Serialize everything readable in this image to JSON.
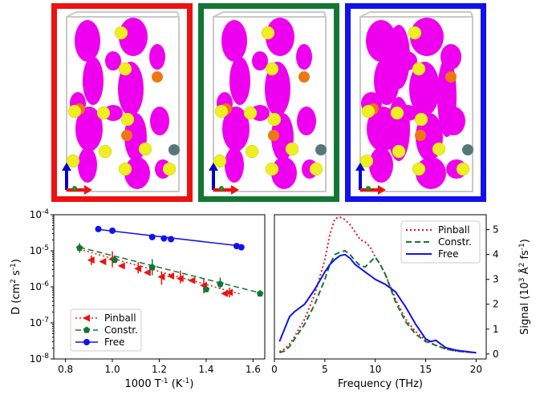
{
  "panels": [
    {
      "name": "Pinball",
      "color": "#ee1111"
    },
    {
      "name": "Constr.",
      "color": "#117733"
    },
    {
      "name": "Free",
      "color": "#1111ee"
    }
  ],
  "chart_data": [
    {
      "type": "scatter",
      "log_y": true,
      "xlim": [
        0.75,
        1.65
      ],
      "ylim": [
        1e-08,
        0.0001
      ],
      "xlabel": "1000 T^{-1} (K^{-1})",
      "ylabel": "D (cm^2 s^{-1})",
      "xticks": [
        "0.8",
        "1.0",
        "1.2",
        "1.4",
        "1.6"
      ],
      "yticks": [
        "10^{-8}",
        "10^{-7}",
        "10^{-6}",
        "10^{-5}",
        "10^{-4}"
      ],
      "legend_position": "lower-left",
      "series": [
        {
          "name": "Pinball",
          "color": "#ee1111",
          "line": "dotted",
          "marker": "triangle-left",
          "fit": [
            [
              0.86,
              1.1e-05
            ],
            [
              1.55,
              6.2e-07
            ]
          ],
          "x": [
            0.91,
            0.96,
            1.0,
            1.04,
            1.11,
            1.15,
            1.21,
            1.25,
            1.29,
            1.34,
            1.39,
            1.48,
            1.5
          ],
          "y": [
            5.5e-06,
            5e-06,
            5.8e-06,
            3.8e-06,
            3.2e-06,
            2.5e-06,
            1.9e-06,
            2e-06,
            1.7e-06,
            1.5e-06,
            1.1e-06,
            6.5e-07,
            7e-07
          ]
        },
        {
          "name": "Constr.",
          "color": "#117733",
          "line": "dashed",
          "marker": "pentagon",
          "fit": [
            [
              0.86,
              1.25e-05
            ],
            [
              1.63,
              6.8e-07
            ]
          ],
          "x": [
            0.86,
            1.01,
            1.17,
            1.4,
            1.46,
            1.63
          ],
          "y": [
            1.2e-05,
            5.5e-06,
            3.5e-06,
            8.5e-07,
            1.2e-06,
            6.5e-07
          ]
        },
        {
          "name": "Free",
          "color": "#1111ee",
          "line": "solid",
          "marker": "circle",
          "fit": [
            [
              0.94,
              3.9e-05
            ],
            [
              1.55,
              1.35e-05
            ]
          ],
          "x": [
            0.94,
            1.0,
            1.17,
            1.22,
            1.25,
            1.53,
            1.55
          ],
          "y": [
            4e-05,
            3.6e-05,
            2.4e-05,
            2.2e-05,
            2.1e-05,
            1.35e-05,
            1.25e-05
          ]
        }
      ]
    },
    {
      "type": "line",
      "xlim": [
        0,
        21
      ],
      "ylim": [
        -0.2,
        5.6
      ],
      "xlabel": "Frequency (THz)",
      "ylabel": "Signal (10^3 Å^2 fs^{-1})",
      "xticks": [
        "0",
        "5",
        "10",
        "15",
        "20"
      ],
      "yticks": [
        "0",
        "1",
        "2",
        "3",
        "4",
        "5"
      ],
      "legend_position": "upper-right",
      "series": [
        {
          "name": "Pinball",
          "color": "#ee1111",
          "line": "dotted",
          "x": [
            0.5,
            1,
            1.5,
            2,
            3,
            4,
            5,
            5.5,
            6,
            6.5,
            7,
            7.5,
            8,
            8.5,
            9,
            9.5,
            10,
            10.5,
            11,
            12,
            13,
            14,
            15,
            16,
            17,
            18,
            19,
            20
          ],
          "y": [
            0.1,
            0.2,
            0.4,
            0.7,
            1.4,
            2.4,
            3.8,
            4.8,
            5.45,
            5.5,
            5.4,
            5.2,
            4.9,
            4.6,
            4.5,
            4.3,
            3.9,
            3.6,
            3.2,
            2.2,
            1.4,
            0.9,
            0.55,
            0.35,
            0.2,
            0.12,
            0.08,
            0.05
          ]
        },
        {
          "name": "Constr.",
          "color": "#117733",
          "line": "dashed",
          "x": [
            0.5,
            1,
            1.5,
            2,
            3,
            4,
            5,
            5.5,
            6,
            6.5,
            7,
            7.5,
            8,
            8.5,
            9,
            9.5,
            10,
            10.5,
            11,
            12,
            13,
            14,
            15,
            16,
            17,
            18,
            19,
            20
          ],
          "y": [
            0.05,
            0.12,
            0.3,
            0.6,
            1.2,
            2.0,
            3.0,
            3.6,
            4.0,
            4.1,
            4.15,
            4.0,
            3.75,
            3.55,
            3.5,
            3.7,
            3.9,
            3.6,
            3.2,
            2.1,
            1.3,
            0.8,
            0.5,
            0.35,
            0.2,
            0.12,
            0.08,
            0.05
          ]
        },
        {
          "name": "Free",
          "color": "#1111ee",
          "line": "solid",
          "x": [
            0.5,
            1,
            1.5,
            2,
            3,
            4,
            5,
            5.5,
            6,
            6.5,
            7,
            7.5,
            8,
            8.5,
            9,
            9.5,
            10,
            10.5,
            11,
            12,
            13,
            14,
            15,
            15.5,
            16,
            16.5,
            17,
            18,
            19,
            20
          ],
          "y": [
            0.5,
            1.0,
            1.5,
            1.7,
            2.0,
            2.6,
            3.3,
            3.6,
            3.8,
            3.95,
            4.0,
            3.85,
            3.6,
            3.45,
            3.3,
            3.15,
            3.0,
            2.9,
            2.8,
            2.5,
            1.9,
            1.2,
            0.6,
            0.5,
            0.55,
            0.4,
            0.25,
            0.15,
            0.1,
            0.05
          ]
        }
      ]
    }
  ]
}
